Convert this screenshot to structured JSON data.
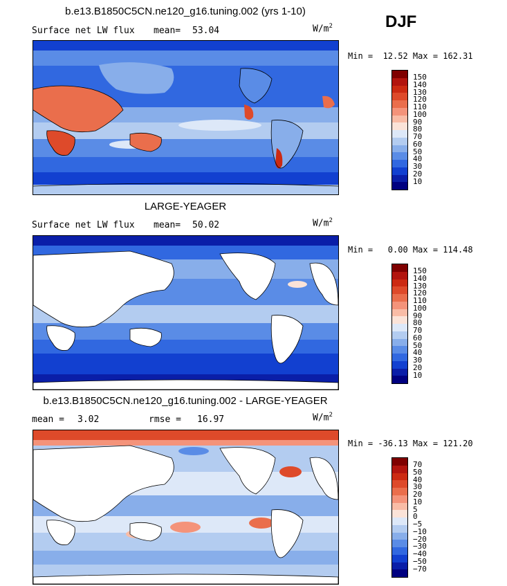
{
  "season": "DJF",
  "panels": [
    {
      "title": "b.e13.B1850C5CN.ne120_g16.tuning.002 (yrs 1-10)",
      "left_label": "Surface net LW flux",
      "stat_label": "mean=",
      "stat_value": "53.04",
      "units_base": "W/m",
      "units_exp": "2",
      "minmax": "Min =  12.52 Max = 162.31",
      "field": "model",
      "colorbar": {
        "labels": [
          "150",
          "140",
          "130",
          "120",
          "110",
          "100",
          "90",
          "80",
          "70",
          "60",
          "50",
          "40",
          "30",
          "20",
          "10"
        ],
        "colors": [
          "#7f0000",
          "#b2140e",
          "#cc2a12",
          "#de4a2a",
          "#ea6e4c",
          "#f4937a",
          "#f9bca6",
          "#fbe3d8",
          "#dde8f8",
          "#b3ccf0",
          "#88aeea",
          "#5a8ce6",
          "#3168e0",
          "#1240d0",
          "#0a1ea8",
          "#000080"
        ]
      }
    },
    {
      "title": "LARGE-YEAGER",
      "left_label": "Surface net LW flux",
      "stat_label": "mean=",
      "stat_value": "50.02",
      "units_base": "W/m",
      "units_exp": "2",
      "minmax": "Min =   0.00 Max = 114.48",
      "field": "obs",
      "colorbar": {
        "labels": [
          "150",
          "140",
          "130",
          "120",
          "110",
          "100",
          "90",
          "80",
          "70",
          "60",
          "50",
          "40",
          "30",
          "20",
          "10"
        ],
        "colors": [
          "#7f0000",
          "#b2140e",
          "#cc2a12",
          "#de4a2a",
          "#ea6e4c",
          "#f4937a",
          "#f9bca6",
          "#fbe3d8",
          "#dde8f8",
          "#b3ccf0",
          "#88aeea",
          "#5a8ce6",
          "#3168e0",
          "#1240d0",
          "#0a1ea8",
          "#000080"
        ]
      }
    },
    {
      "title": "b.e13.B1850C5CN.ne120_g16.tuning.002 - LARGE-YEAGER",
      "left_label": "mean =",
      "left_value": "3.02",
      "stat_label": "rmse =",
      "stat_value": "16.97",
      "units_base": "W/m",
      "units_exp": "2",
      "minmax": "Min = -36.13 Max = 121.20",
      "field": "diff",
      "colorbar": {
        "labels": [
          "70",
          "50",
          "40",
          "30",
          "20",
          "10",
          "5",
          "0",
          "−5",
          "−10",
          "−20",
          "−30",
          "−40",
          "−50",
          "−70"
        ],
        "colors": [
          "#7f0000",
          "#b2140e",
          "#cc2a12",
          "#de4a2a",
          "#ea6e4c",
          "#f4937a",
          "#f9bca6",
          "#fbe3d8",
          "#dde8f8",
          "#b3ccf0",
          "#88aeea",
          "#5a8ce6",
          "#3168e0",
          "#1240d0",
          "#0a1ea8",
          "#000080"
        ]
      }
    }
  ]
}
